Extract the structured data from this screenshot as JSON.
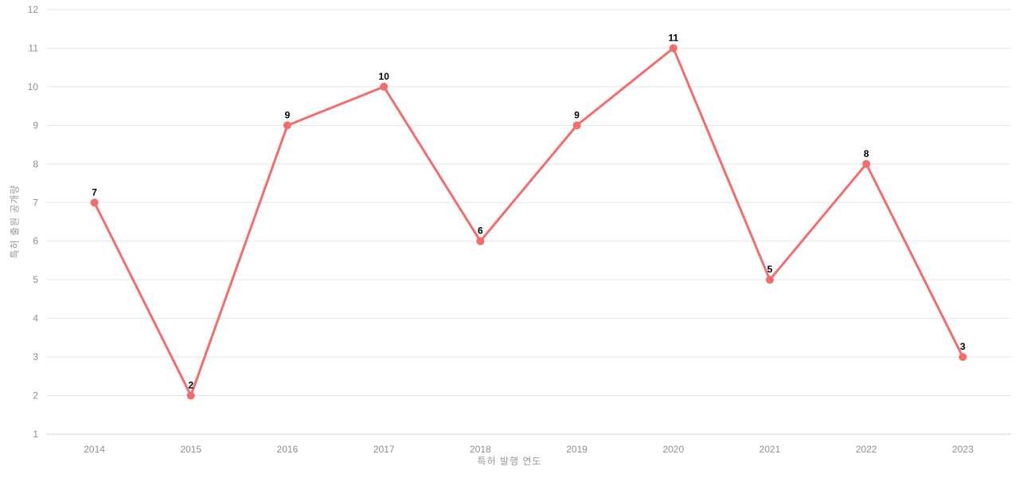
{
  "chart_data": {
    "type": "line",
    "categories": [
      "2014",
      "2015",
      "2016",
      "2017",
      "2018",
      "2019",
      "2020",
      "2021",
      "2022",
      "2023"
    ],
    "values": [
      7,
      2,
      9,
      10,
      6,
      9,
      11,
      5,
      8,
      3
    ],
    "title": "",
    "xlabel": "특허 발행 연도",
    "ylabel": "특허 출원 공개량",
    "ylim": [
      1,
      12
    ],
    "y_ticks": [
      1,
      2,
      3,
      4,
      5,
      6,
      7,
      8,
      9,
      10,
      11,
      12
    ],
    "grid": true,
    "legend": "none",
    "marker": "circle",
    "value_labels_shown": true,
    "colors": {
      "line": "#f56c6c",
      "marker": "#f56c6c",
      "value_label": "#000000",
      "tick_label": "#8f8f8f",
      "axis_title": "#9a9a9a",
      "gridline": "#e6e6e6",
      "axis_line": "#ccd6eb",
      "background": "#ffffff"
    }
  }
}
